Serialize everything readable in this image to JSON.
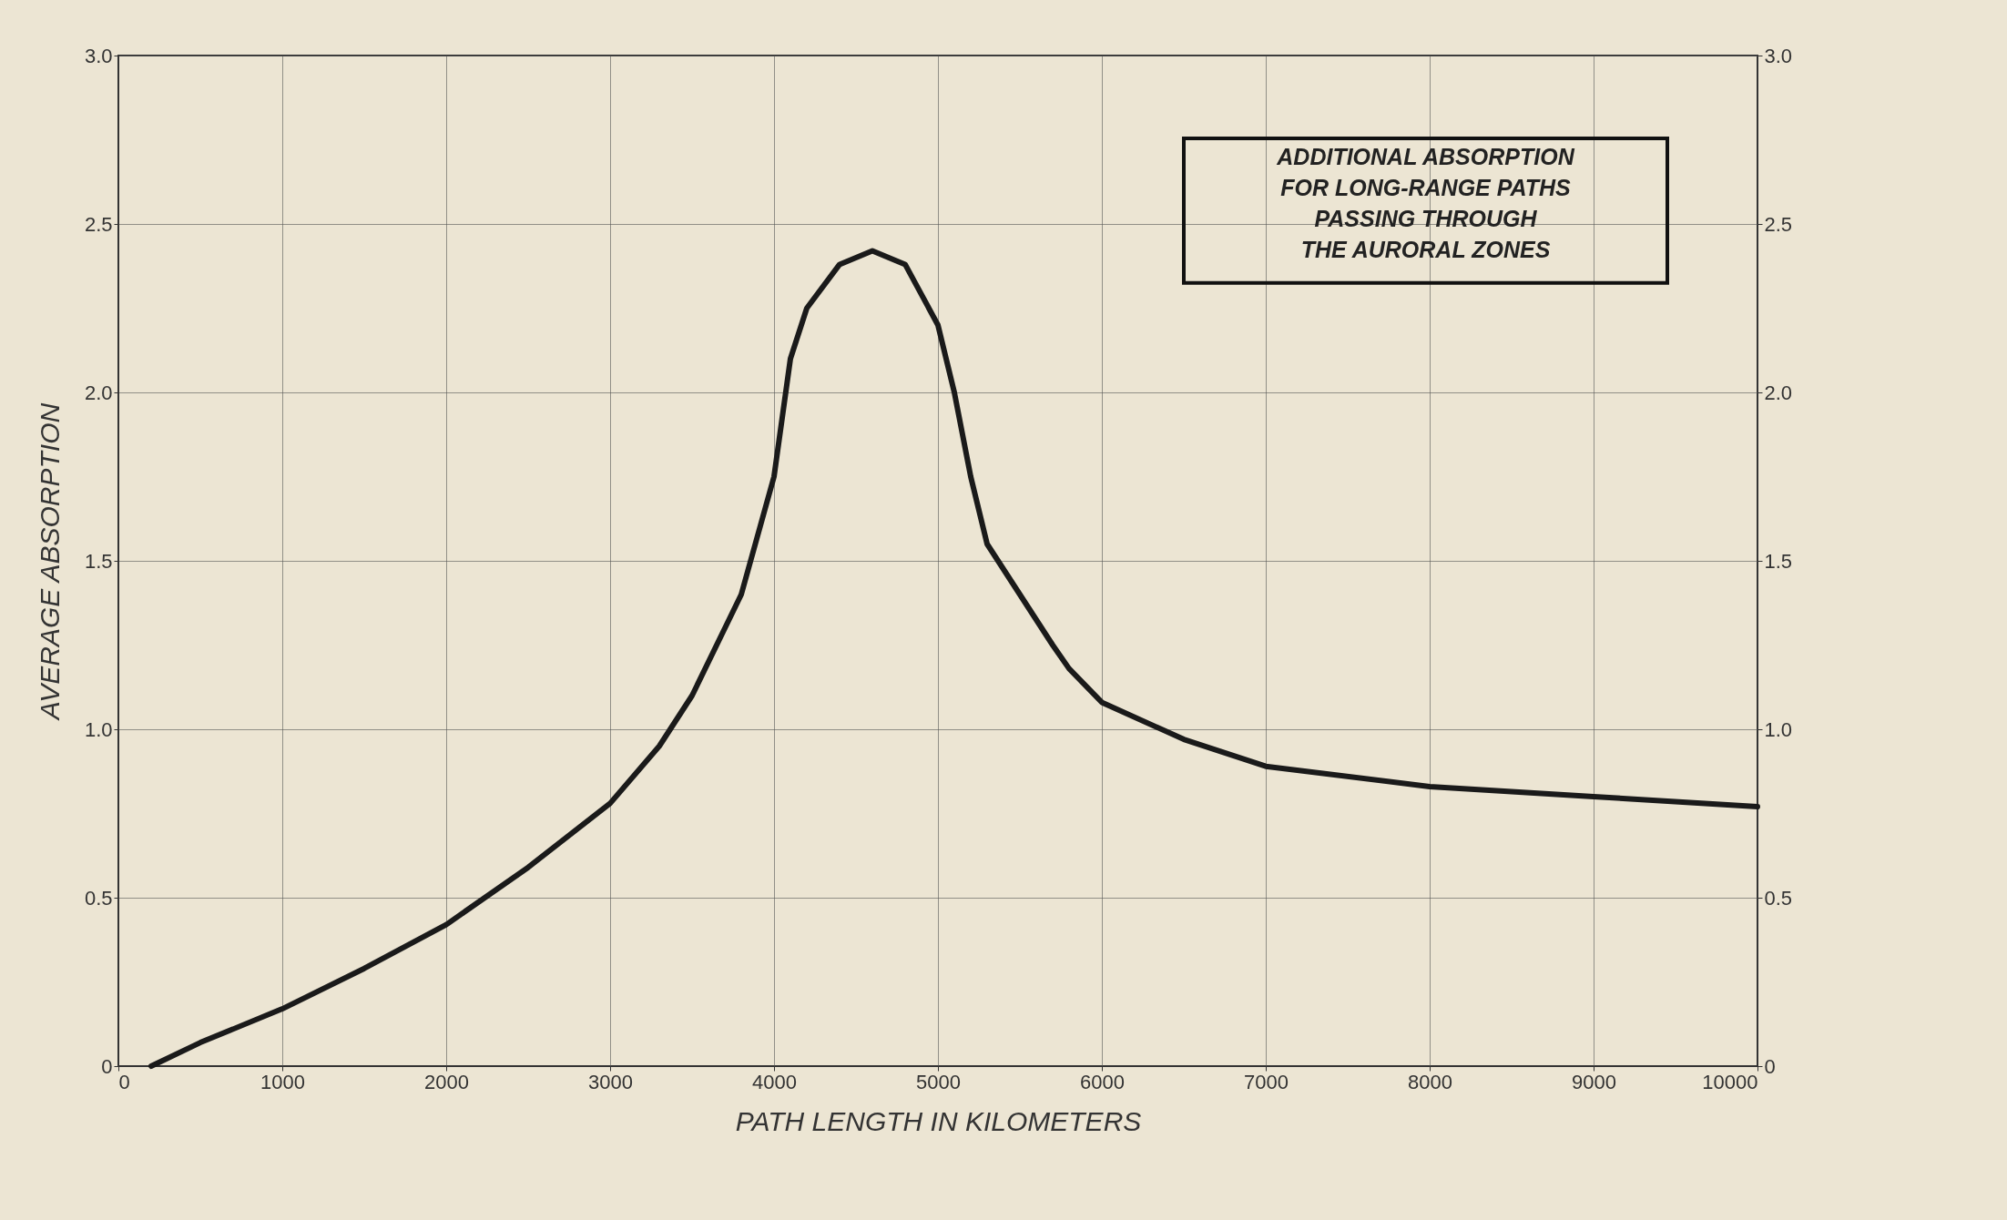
{
  "chart_data": {
    "type": "line",
    "xlabel": "PATH LENGTH IN KILOMETERS",
    "ylabel": "AVERAGE ABSORPTION",
    "x": [
      200,
      500,
      1000,
      1500,
      2000,
      2500,
      3000,
      3300,
      3500,
      3700,
      3800,
      4000,
      4100,
      4200,
      4400,
      4600,
      4800,
      5000,
      5100,
      5200,
      5300,
      5500,
      5700,
      5800,
      6000,
      6500,
      7000,
      8000,
      9000,
      10000
    ],
    "series": [
      {
        "color": "#1a1a1a",
        "values": [
          0,
          0.07,
          0.17,
          0.29,
          0.42,
          0.59,
          0.78,
          0.95,
          1.1,
          1.3,
          1.4,
          1.75,
          2.1,
          2.25,
          2.38,
          2.42,
          2.38,
          2.2,
          2.0,
          1.75,
          1.55,
          1.4,
          1.25,
          1.18,
          1.08,
          0.97,
          0.89,
          0.83,
          0.8,
          0.77
        ]
      }
    ],
    "xlim": [
      0,
      10000
    ],
    "xticks": [
      0,
      1000,
      2000,
      3000,
      4000,
      5000,
      6000,
      7000,
      8000,
      9000,
      10000
    ],
    "ylim": [
      0,
      3
    ],
    "yticks": [
      0,
      0.5,
      {
        "value": 1,
        "label": "1.0"
      },
      1.5,
      {
        "value": 2,
        "label": "2.0"
      },
      2.5,
      {
        "value": 3,
        "label": "3.0"
      }
    ],
    "y2lim": [
      0,
      3
    ],
    "y2ticks": [
      0,
      0.5,
      {
        "value": 1,
        "label": "1.0"
      },
      1.5,
      {
        "value": 2,
        "label": "2.0"
      },
      2.5,
      {
        "value": 3,
        "label": "3.0"
      }
    ],
    "grid": true,
    "marker": "none",
    "line_style": "solid",
    "annotations": [
      "ADDITIONAL ABSORPTION\nFOR LONG-RANGE PATHS\nPASSING THROUGH\nTHE AURORAL ZONES"
    ]
  }
}
